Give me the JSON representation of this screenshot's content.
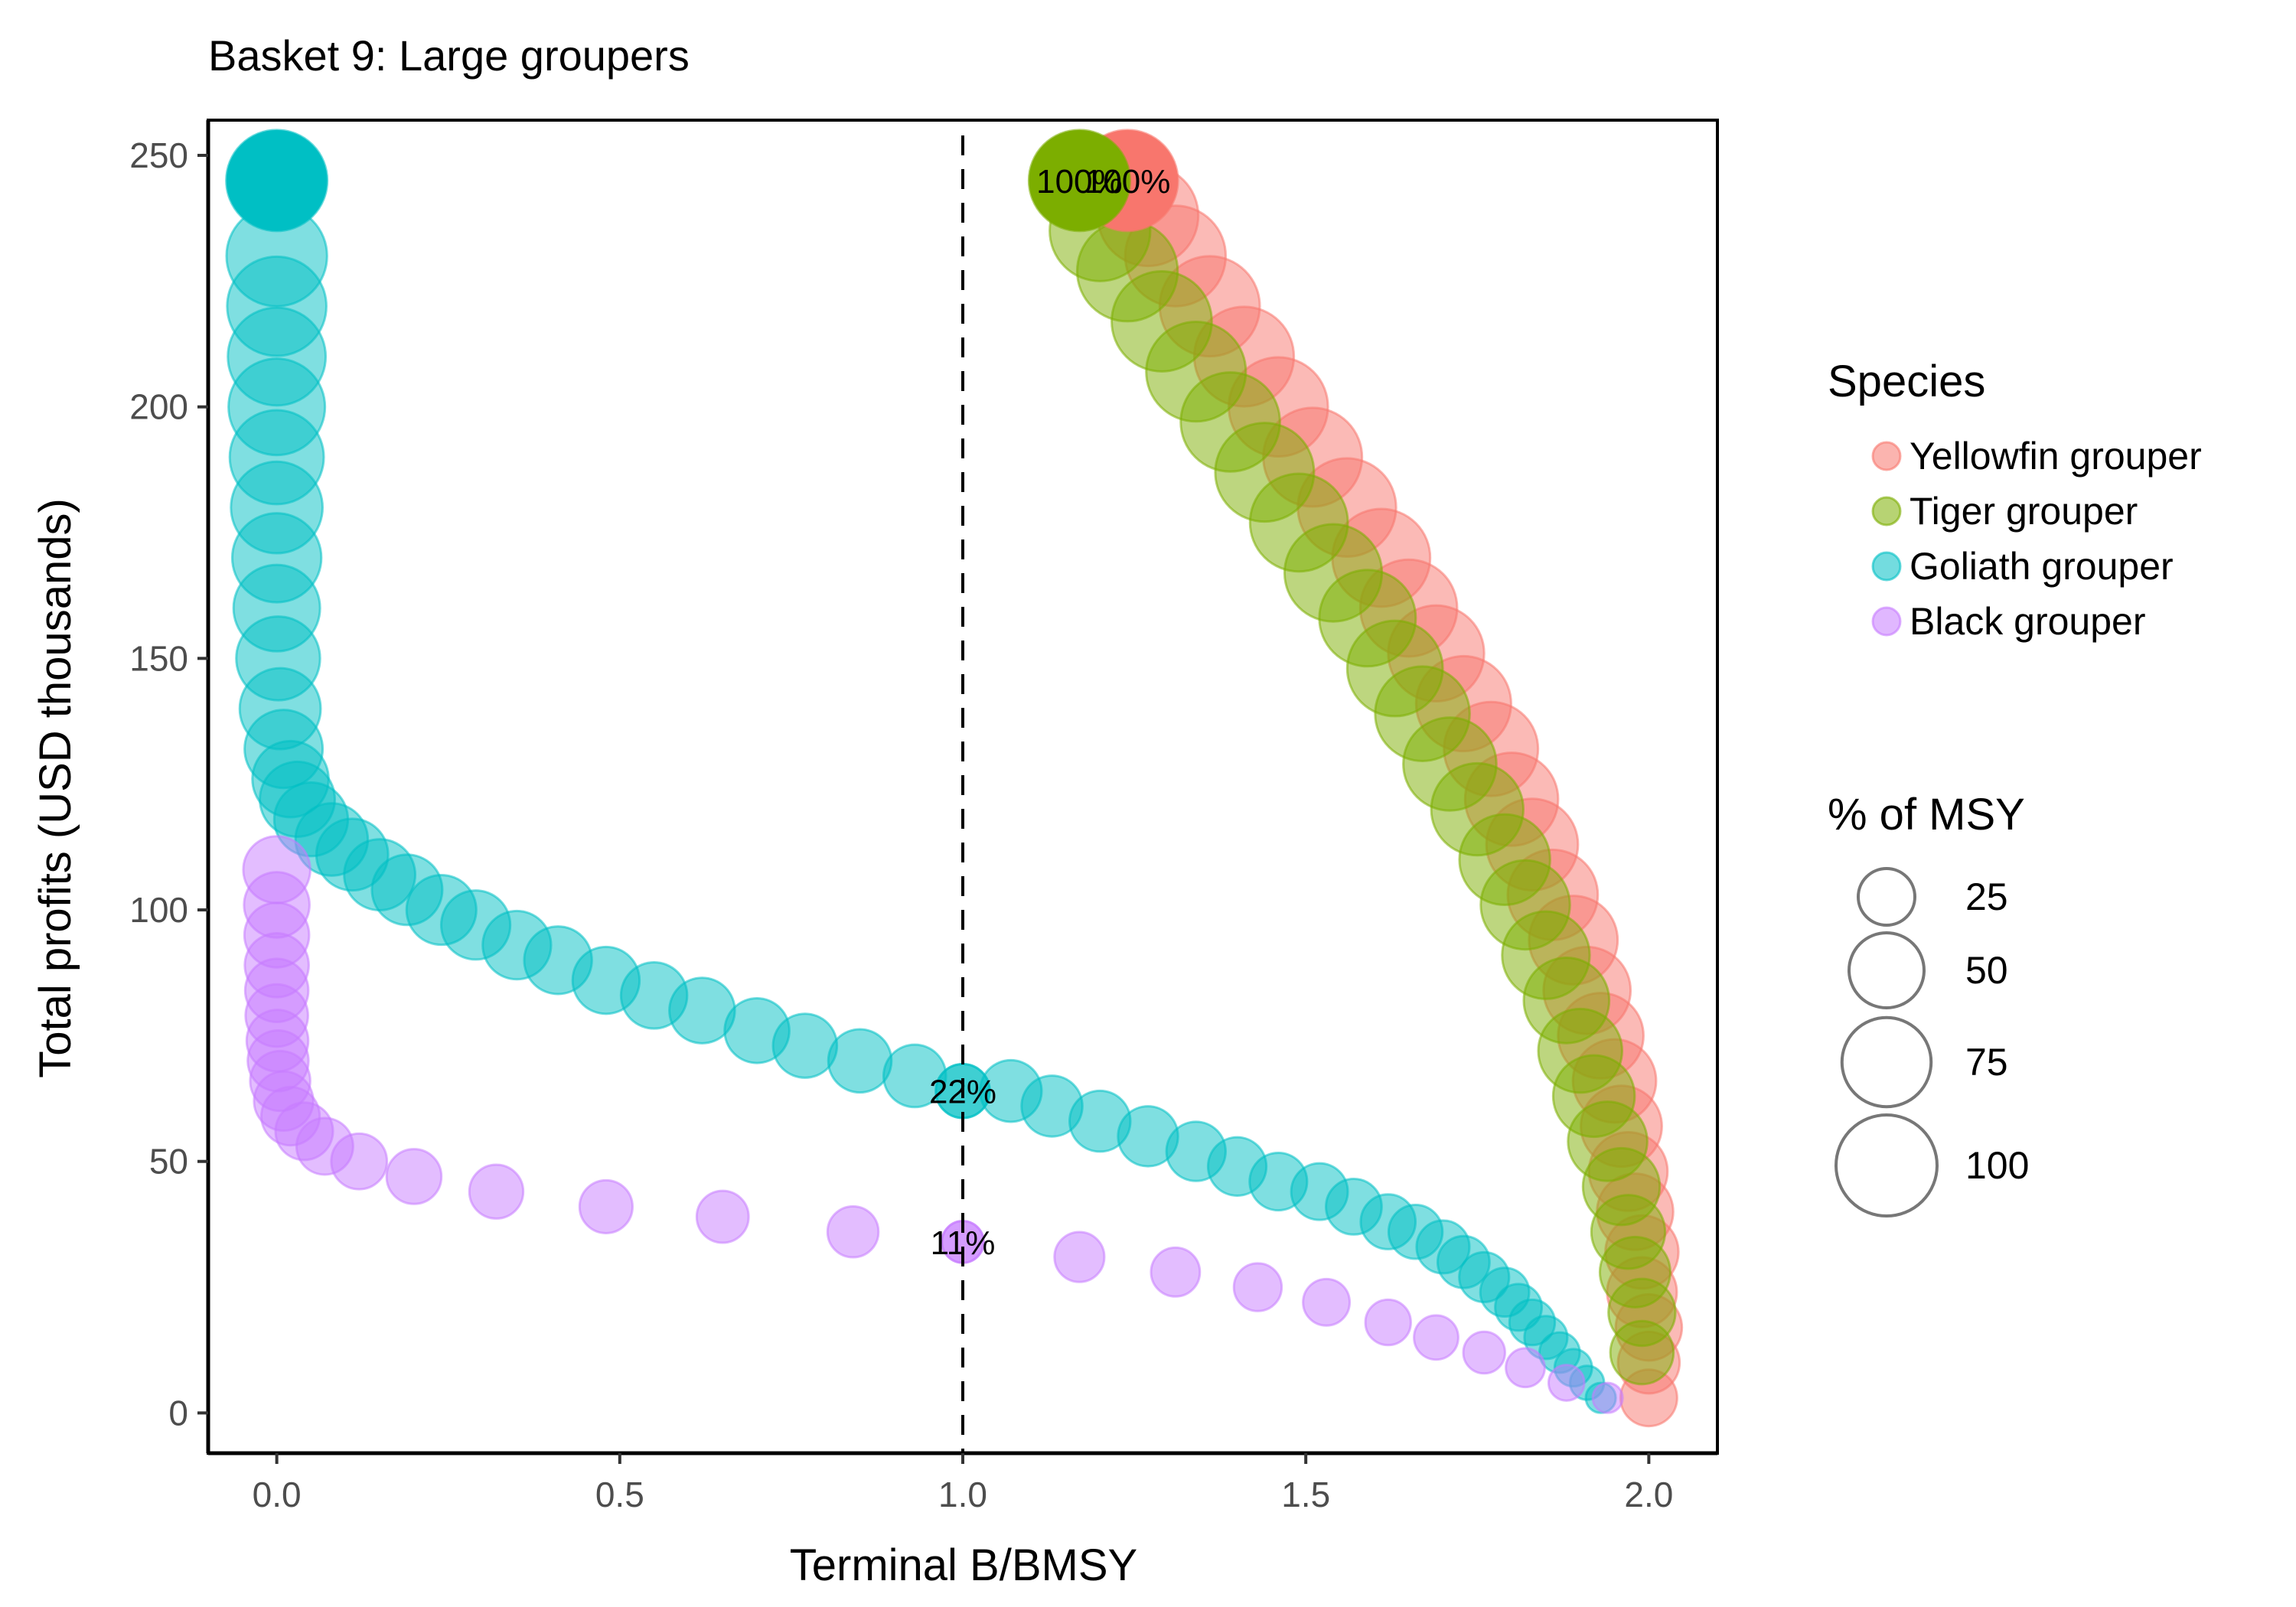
{
  "chart_data": {
    "type": "scatter",
    "title": "Basket 9: Large groupers",
    "xlabel": "Terminal B/BMSY",
    "ylabel": "Total profits (USD thousands)",
    "xlim": [
      -0.1,
      2.1
    ],
    "ylim": [
      -8,
      257
    ],
    "xticks": [
      "0.0",
      "0.5",
      "1.0",
      "1.5",
      "2.0"
    ],
    "xtick_values": [
      0,
      0.5,
      1.0,
      1.5,
      2.0
    ],
    "yticks": [
      "0",
      "50",
      "100",
      "150",
      "200",
      "250"
    ],
    "ytick_values": [
      0,
      50,
      100,
      150,
      200,
      250
    ],
    "grid": false,
    "reference_line": {
      "x": 1.0,
      "style": "dashed",
      "color": "#000000"
    },
    "legend_position": "right",
    "color_legend": {
      "title": "Species",
      "entries": [
        {
          "name": "Yellowfin grouper",
          "color": "#F8766D"
        },
        {
          "name": "Tiger grouper",
          "color": "#7CAE00"
        },
        {
          "name": "Goliath grouper",
          "color": "#00BFC4"
        },
        {
          "name": "Black grouper",
          "color": "#C77CFF"
        }
      ]
    },
    "size_legend": {
      "title": "% of MSY",
      "entries": [
        {
          "label": "25",
          "value": 25
        },
        {
          "label": "50",
          "value": 50
        },
        {
          "label": "75",
          "value": 75
        },
        {
          "label": "100",
          "value": 100
        }
      ]
    },
    "series": [
      {
        "name": "Yellowfin grouper",
        "color": "#F8766D",
        "x": [
          2.0,
          2.0,
          2.0,
          1.99,
          1.99,
          1.98,
          1.97,
          1.96,
          1.95,
          1.93,
          1.91,
          1.89,
          1.86,
          1.83,
          1.8,
          1.77,
          1.73,
          1.69,
          1.65,
          1.61,
          1.56,
          1.51,
          1.46,
          1.41,
          1.36,
          1.31,
          1.27
        ],
        "y": [
          3,
          10,
          17,
          24,
          32,
          40,
          48,
          57,
          66,
          75,
          84,
          94,
          103,
          113,
          122,
          132,
          141,
          151,
          160,
          170,
          180,
          190,
          200,
          210,
          220,
          230,
          238
        ],
        "pct_msy": [
          25,
          31,
          37,
          42,
          47,
          52,
          56,
          60,
          64,
          68,
          71,
          74,
          77,
          80,
          83,
          85,
          87,
          89,
          91,
          93,
          94,
          95,
          96,
          97,
          98,
          99,
          99
        ]
      },
      {
        "name": "Tiger grouper",
        "color": "#7CAE00",
        "x": [
          1.99,
          1.99,
          1.98,
          1.97,
          1.96,
          1.94,
          1.92,
          1.9,
          1.88,
          1.85,
          1.82,
          1.79,
          1.75,
          1.71,
          1.67,
          1.63,
          1.59,
          1.54,
          1.49,
          1.44,
          1.39,
          1.34,
          1.29,
          1.24,
          1.2
        ],
        "y": [
          12,
          20,
          28,
          36,
          45,
          54,
          63,
          72,
          82,
          91,
          101,
          110,
          120,
          129,
          139,
          148,
          158,
          167,
          177,
          187,
          197,
          207,
          217,
          227,
          235
        ],
        "pct_msy": [
          33,
          38,
          43,
          48,
          53,
          57,
          61,
          65,
          68,
          72,
          75,
          78,
          81,
          83,
          86,
          88,
          90,
          92,
          93,
          95,
          96,
          97,
          98,
          99,
          99
        ]
      },
      {
        "name": "Goliath grouper",
        "color": "#00BFC4",
        "x": [
          1.93,
          1.91,
          1.89,
          1.87,
          1.85,
          1.83,
          1.81,
          1.79,
          1.76,
          1.73,
          1.7,
          1.66,
          1.62,
          1.57,
          1.52,
          1.46,
          1.4,
          1.34,
          1.27,
          1.2,
          1.13,
          1.07,
          1.0,
          0.93,
          0.85,
          0.77,
          0.7,
          0.62,
          0.55,
          0.48,
          0.41,
          0.35,
          0.29,
          0.24,
          0.19,
          0.15,
          0.11,
          0.08,
          0.05,
          0.03,
          0.02,
          0.01,
          0.005,
          0.002,
          0.0,
          0.0,
          0.0,
          0.0,
          0.0,
          0.0,
          0.0,
          0.0
        ],
        "y": [
          3,
          6,
          9,
          12,
          15,
          18,
          21,
          24,
          27,
          30,
          33,
          36,
          38,
          41,
          44,
          46,
          49,
          52,
          55,
          58,
          61,
          64,
          64,
          67,
          70,
          73,
          76,
          80,
          83,
          86,
          90,
          93,
          97,
          100,
          104,
          107,
          111,
          114,
          118,
          122,
          126,
          132,
          140,
          150,
          160,
          170,
          180,
          190,
          200,
          210,
          220,
          230
        ],
        "pct_msy": [
          4,
          6,
          8,
          10,
          12,
          14,
          15,
          17,
          18,
          20,
          21,
          22,
          23,
          24,
          25,
          26,
          27,
          28,
          29,
          30,
          30,
          31,
          22,
          32,
          33,
          34,
          35,
          36,
          37,
          38,
          39,
          40,
          41,
          42,
          43,
          44,
          45,
          46,
          48,
          50,
          52,
          55,
          60,
          65,
          70,
          75,
          80,
          85,
          90,
          93,
          96,
          99
        ]
      },
      {
        "name": "Black grouper",
        "color": "#C77CFF",
        "x": [
          1.94,
          1.88,
          1.82,
          1.76,
          1.69,
          1.62,
          1.53,
          1.43,
          1.31,
          1.17,
          1.0,
          0.84,
          0.65,
          0.48,
          0.32,
          0.2,
          0.12,
          0.07,
          0.04,
          0.02,
          0.01,
          0.005,
          0.002,
          0.001,
          0.0,
          0.0,
          0.0,
          0.0,
          0.0,
          0.0
        ],
        "y": [
          3,
          6,
          9,
          12,
          15,
          18,
          22,
          25,
          28,
          31,
          34,
          36,
          39,
          41,
          44,
          47,
          50,
          53,
          56,
          59,
          62,
          66,
          70,
          74,
          79,
          84,
          89,
          95,
          101,
          108
        ],
        "pct_msy": [
          4,
          7,
          9,
          11,
          13,
          14,
          15,
          16,
          17,
          18,
          11,
          19,
          20,
          21,
          22,
          23,
          24,
          25,
          26,
          27,
          28,
          29,
          30,
          31,
          32,
          33,
          34,
          35,
          36,
          38
        ]
      }
    ],
    "highlight_points": [
      {
        "series": "Yellowfin grouper",
        "x": 1.24,
        "y": 245,
        "pct_msy": 100,
        "label": "100%"
      },
      {
        "series": "Tiger grouper",
        "x": 1.17,
        "y": 245,
        "pct_msy": 100,
        "label": "100%"
      },
      {
        "series": "Goliath grouper",
        "x": 0.0,
        "y": 245,
        "pct_msy": 100,
        "label": ""
      },
      {
        "series": "Goliath grouper",
        "x": 1.0,
        "y": 64,
        "pct_msy": 22,
        "label": "22%"
      },
      {
        "series": "Black grouper",
        "x": 1.0,
        "y": 34,
        "pct_msy": 11,
        "label": "11%"
      }
    ]
  }
}
